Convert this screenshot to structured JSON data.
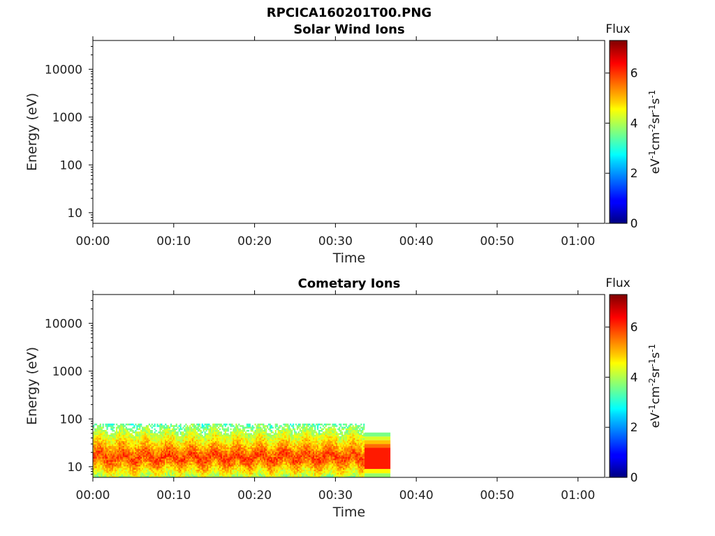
{
  "header": {
    "filename": "RPCICA160201T00.PNG"
  },
  "chart_data": [
    {
      "type": "heatmap",
      "title": "Solar Wind Ions",
      "xlabel": "Time",
      "ylabel": "Energy (eV)",
      "x_ticks": [
        "00:00",
        "00:10",
        "00:20",
        "00:30",
        "00:40",
        "00:50",
        "01:00"
      ],
      "xlim_minutes": [
        0,
        63.3
      ],
      "y_scale": "log",
      "y_ticks": [
        "10",
        "100",
        "1000",
        "10000"
      ],
      "ylim": [
        6,
        40000
      ],
      "colorbar": {
        "label": "Flux",
        "units": "eV-1cm-2sr-1s-1",
        "ticks": [
          "0",
          "2",
          "4",
          "6"
        ],
        "range": [
          0,
          7.3
        ],
        "colormap": "jet"
      },
      "data": []
    },
    {
      "type": "heatmap",
      "title": "Cometary Ions",
      "xlabel": "Time",
      "ylabel": "Energy (eV)",
      "x_ticks": [
        "00:00",
        "00:10",
        "00:20",
        "00:30",
        "00:40",
        "00:50",
        "01:00"
      ],
      "xlim_minutes": [
        0,
        63.3
      ],
      "y_scale": "log",
      "y_ticks": [
        "10",
        "100",
        "1000",
        "10000"
      ],
      "ylim": [
        6,
        40000
      ],
      "colorbar": {
        "label": "Flux",
        "units": "eV-1cm-2sr-1s-1",
        "ticks": [
          "0",
          "2",
          "4",
          "6"
        ],
        "range": [
          0,
          7.3
        ],
        "colormap": "jet"
      },
      "data": [
        {
          "time_min": [
            0,
            33.6
          ],
          "energy_ev": [
            6,
            80
          ],
          "peak_flux_energy_ev": 15,
          "peak_flux": 6.5,
          "pattern": "noisy"
        },
        {
          "time_min": [
            33.6,
            36.8
          ],
          "energy_ev": [
            6,
            52
          ],
          "bands": [
            {
              "energy_ev": [
                6,
                7.3
              ],
              "flux": 3.8
            },
            {
              "energy_ev": [
                7.3,
                9
              ],
              "flux": 4.6
            },
            {
              "energy_ev": [
                9,
                25
              ],
              "flux": 6.2
            },
            {
              "energy_ev": [
                25,
                30
              ],
              "flux": 5.6
            },
            {
              "energy_ev": [
                30,
                36
              ],
              "flux": 5.0
            },
            {
              "energy_ev": [
                36,
                43
              ],
              "flux": 4.3
            },
            {
              "energy_ev": [
                43,
                52
              ],
              "flux": 3.6
            }
          ]
        }
      ]
    }
  ]
}
